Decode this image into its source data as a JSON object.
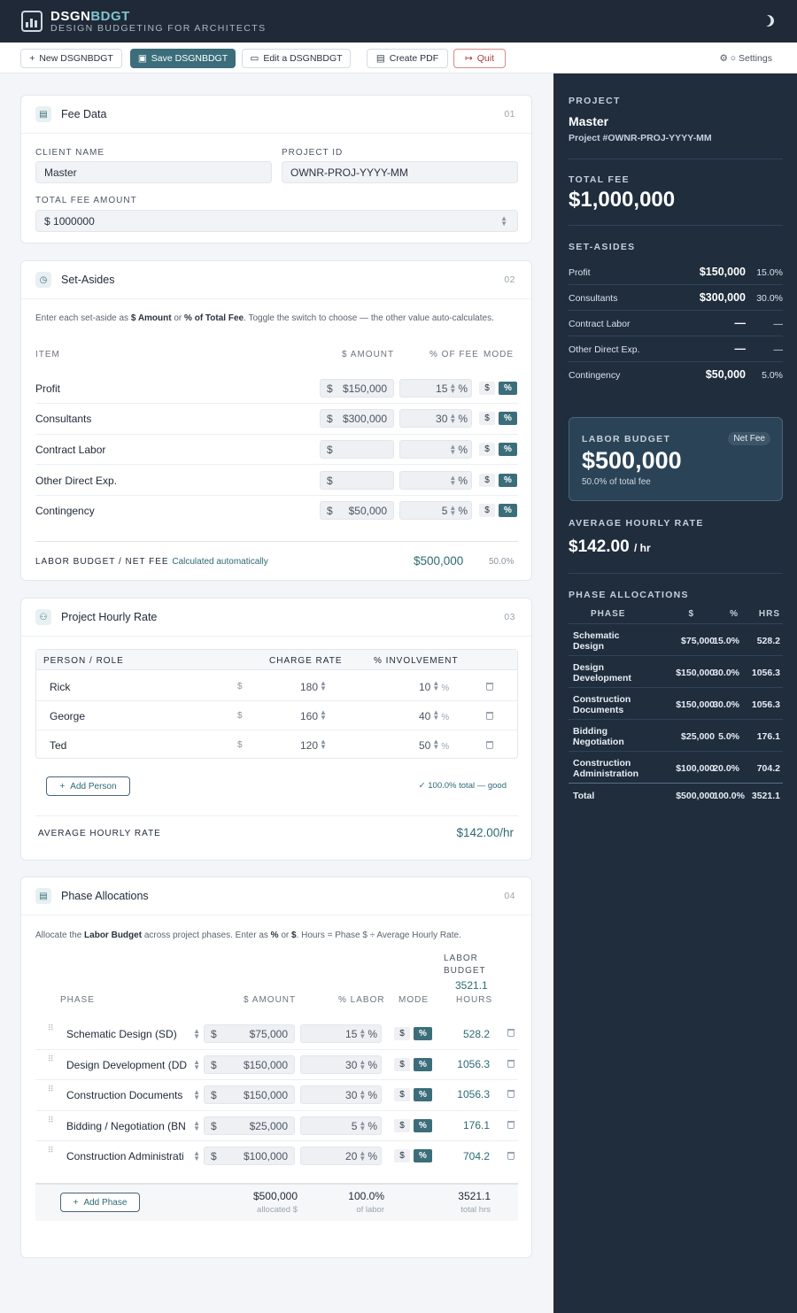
{
  "app": {
    "brand_a": "DSGN",
    "brand_b": "BDGT",
    "tagline": "DESIGN BUDGETING FOR ARCHITECTS"
  },
  "toolbar": {
    "new": "New DSGNBDGT",
    "save": "Save DSGNBDGT",
    "edit": "Edit a DSGNBDGT",
    "pdf": "Create PDF",
    "quit": "Quit",
    "settings": "Settings"
  },
  "fee_data": {
    "title": "Fee Data",
    "num": "01",
    "client_label": "CLIENT NAME",
    "client_value": "Master",
    "project_label": "PROJECT ID",
    "project_value": "OWNR-PROJ-YYYY-MM",
    "total_label": "TOTAL FEE AMOUNT",
    "currency": "$",
    "total_value": "1000000"
  },
  "set_asides": {
    "title": "Set-Asides",
    "num": "02",
    "desc_a": "Enter each set-aside as ",
    "desc_b": "$ Amount",
    "desc_c": " or ",
    "desc_d": "% of Total Fee",
    "desc_e": ". Toggle the switch to choose — the other value auto-calculates.",
    "col_item": "ITEM",
    "col_amount": "$ AMOUNT",
    "col_pct": "% OF FEE",
    "col_mode": "MODE",
    "rows": [
      {
        "item": "Profit",
        "amount": "$150,000",
        "pct": "15"
      },
      {
        "item": "Consultants",
        "amount": "$300,000",
        "pct": "30"
      },
      {
        "item": "Contract Labor",
        "amount": "",
        "pct": ""
      },
      {
        "item": "Other Direct Exp.",
        "amount": "",
        "pct": ""
      },
      {
        "item": "Contingency",
        "amount": "$50,000",
        "pct": "5"
      }
    ],
    "dollar": "$",
    "percent": "%",
    "labor_label": "LABOR BUDGET / NET FEE",
    "labor_note": "Calculated automatically",
    "labor_value": "$500,000",
    "labor_pct": "50.0%"
  },
  "hourly": {
    "title": "Project Hourly Rate",
    "num": "03",
    "col_person": "PERSON / ROLE",
    "col_rate": "CHARGE RATE",
    "col_inv": "% INVOLVEMENT",
    "people": [
      {
        "name": "Rick",
        "rate": "180",
        "inv": "10"
      },
      {
        "name": "George",
        "rate": "160",
        "inv": "40"
      },
      {
        "name": "Ted",
        "rate": "120",
        "inv": "50"
      }
    ],
    "add_person": "Add Person",
    "total_note": "✓ 100.0% total — good",
    "avg_label": "AVERAGE HOURLY RATE",
    "avg_value": "$142.00/hr"
  },
  "phases": {
    "title": "Phase Allocations",
    "num": "04",
    "desc_a": "Allocate the ",
    "desc_b": "Labor Budget",
    "desc_c": " across project phases. Enter as ",
    "desc_d": "%",
    "desc_e": " or ",
    "desc_f": "$",
    "desc_g": ". Hours = Phase $ ÷ Average Hourly Rate.",
    "col_phase": "PHASE",
    "col_amount": "$ AMOUNT",
    "col_labor": "% LABOR",
    "col_mode": "MODE",
    "hours_top1": "LABOR",
    "hours_top2": "BUDGET",
    "hours_total": "3521.1",
    "hours_label": "HOURS",
    "rows": [
      {
        "phase": "Schematic Design (SD)",
        "amount": "$75,000",
        "pct": "15",
        "hours": "528.2"
      },
      {
        "phase": "Design Development (DD",
        "amount": "$150,000",
        "pct": "30",
        "hours": "1056.3"
      },
      {
        "phase": "Construction Documents",
        "amount": "$150,000",
        "pct": "30",
        "hours": "1056.3"
      },
      {
        "phase": "Bidding / Negotiation (BN",
        "amount": "$25,000",
        "pct": "5",
        "hours": "176.1"
      },
      {
        "phase": "Construction Administrati",
        "amount": "$100,000",
        "pct": "20",
        "hours": "704.2"
      }
    ],
    "add_phase": "Add Phase",
    "sum_amount": "$500,000",
    "sum_amount_sub": "allocated $",
    "sum_pct": "100.0%",
    "sum_pct_sub": "of labor",
    "sum_hours": "3521.1",
    "sum_hours_sub": "total hrs"
  },
  "sidebar": {
    "project_label": "PROJECT",
    "project_name": "Master",
    "project_id": "Project #OWNR-PROJ-YYYY-MM",
    "fee_label": "TOTAL FEE",
    "fee_value": "$1,000,000",
    "set_label": "SET-ASIDES",
    "set_rows": [
      {
        "name": "Profit",
        "amount": "$150,000",
        "pct": "15.0%"
      },
      {
        "name": "Consultants",
        "amount": "$300,000",
        "pct": "30.0%"
      },
      {
        "name": "Contract Labor",
        "amount": "—",
        "pct": "—"
      },
      {
        "name": "Other Direct Exp.",
        "amount": "—",
        "pct": "—"
      },
      {
        "name": "Contingency",
        "amount": "$50,000",
        "pct": "5.0%"
      }
    ],
    "labor_label": "LABOR BUDGET",
    "net_fee": "Net Fee",
    "labor_value": "$500,000",
    "labor_sub": "50.0% of total fee",
    "avg_label": "AVERAGE HOURLY RATE",
    "avg_value": "$142.00",
    "avg_unit": "/ hr",
    "phase_label": "PHASE ALLOCATIONS",
    "ph_cols": {
      "phase": "PHASE",
      "amount": "$",
      "pct": "%",
      "hrs": "HRS"
    },
    "ph_rows": [
      {
        "l1": "Schematic",
        "l2": "Design",
        "amount": "$75,000",
        "pct": "15.0%",
        "hrs": "528.2"
      },
      {
        "l1": "Design",
        "l2": "Development",
        "amount": "$150,000",
        "pct": "30.0%",
        "hrs": "1056.3"
      },
      {
        "l1": "Construction",
        "l2": "Documents",
        "amount": "$150,000",
        "pct": "30.0%",
        "hrs": "1056.3"
      },
      {
        "l1": "Bidding /",
        "l2": "Negotiation",
        "amount": "$25,000",
        "pct": "5.0%",
        "hrs": "176.1"
      },
      {
        "l1": "Construction",
        "l2": "Administration",
        "amount": "$100,000",
        "pct": "20.0%",
        "hrs": "704.2"
      }
    ],
    "ph_total": {
      "label": "Total",
      "amount": "$500,000",
      "pct": "100.0%",
      "hrs": "3521.1"
    }
  }
}
